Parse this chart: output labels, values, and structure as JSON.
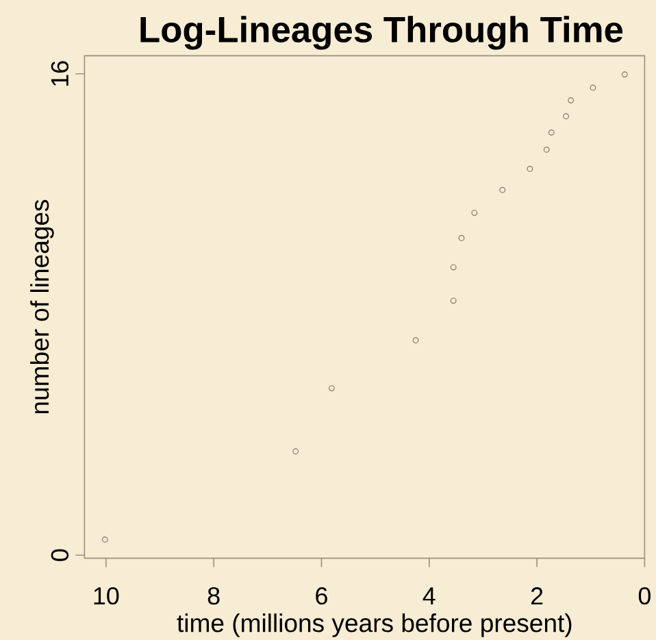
{
  "chart_data": {
    "type": "scatter",
    "title": "Log-Lineages Through Time",
    "xlabel": "time (millions years before present)",
    "ylabel": "number of lineages",
    "x": [
      10.02,
      6.48,
      5.81,
      4.25,
      3.55,
      3.55,
      3.4,
      3.16,
      2.64,
      2.13,
      1.82,
      1.73,
      1.46,
      1.37,
      0.96,
      0.37
    ],
    "values": [
      0.52,
      3.45,
      5.55,
      7.14,
      8.46,
      9.57,
      10.54,
      11.38,
      12.14,
      12.84,
      13.48,
      14.05,
      14.59,
      15.12,
      15.54,
      15.98
    ],
    "color": "#857565",
    "marker": "circle",
    "xlim": [
      10.4,
      0
    ],
    "xticks": [
      10,
      8,
      6,
      4,
      2,
      0
    ],
    "ylim": [
      -0.1,
      16.6
    ],
    "yticks": [
      0,
      16
    ]
  }
}
